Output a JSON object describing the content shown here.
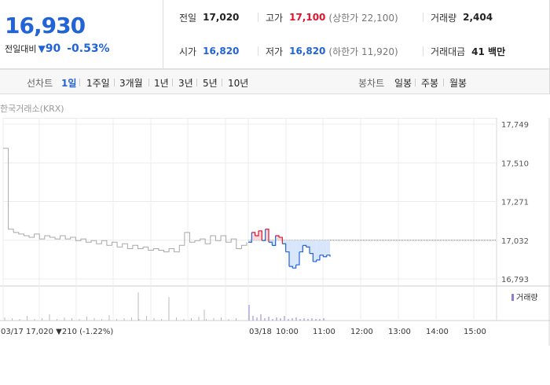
{
  "quote": {
    "price": "16,930",
    "change_label": "전일대비",
    "change_arrow": "▼",
    "change_value": "90",
    "change_pct": "-0.53%",
    "prev_close_label": "전일",
    "prev_close": "17,020",
    "high_label": "고가",
    "high": "17,100",
    "upper_limit": "(상한가 22,100)",
    "volume_label": "거래량",
    "volume": "2,404",
    "open_label": "시가",
    "open": "16,820",
    "low_label": "저가",
    "low": "16,820",
    "lower_limit": "(하한가 11,920)",
    "amount_label": "거래대금",
    "amount": "41 백만"
  },
  "line_chart_label": "선차트",
  "periods": [
    "1일",
    "1주일",
    "3개월",
    "1년",
    "3년",
    "5년",
    "10년"
  ],
  "selected_period": "1일",
  "candle_chart_label": "봉차트",
  "candle_periods": [
    "일봉",
    "주봉",
    "월봉"
  ],
  "exchange": "한국거래소(KRX)",
  "colors": {
    "up": "#e0132c",
    "down": "#2263d6",
    "line": "#a8a8a8"
  },
  "chart_data": {
    "type": "line",
    "y_ticks": [
      "17,749",
      "17,510",
      "17,271",
      "17,032",
      "16,793"
    ],
    "ylim": [
      16793,
      17749
    ],
    "reference_line": 17032,
    "x_ticks": [
      "03/17",
      "03/18",
      "10:00",
      "11:00",
      "12:00",
      "13:00",
      "14:00",
      "15:00"
    ],
    "prev_day_series": [
      17600,
      17100,
      17080,
      17070,
      17060,
      17050,
      17070,
      17040,
      17060,
      17050,
      17040,
      17060,
      17040,
      17050,
      17030,
      17040,
      17020,
      17030,
      17010,
      17030,
      17000,
      17020,
      16990,
      17010,
      16980,
      17000,
      16980,
      16990,
      16970,
      16980,
      16970,
      16960,
      16980,
      16960,
      17000,
      17080,
      17020,
      17030,
      17040,
      17010,
      17060,
      17030,
      17060,
      17020,
      17040,
      16980,
      17000,
      17020
    ],
    "today_series": [
      17020,
      17080,
      17060,
      17090,
      17030,
      17100,
      17020,
      17000,
      17060,
      17050,
      17010,
      16960,
      16870,
      16860,
      16880,
      16960,
      17000,
      16990,
      16950,
      16900,
      16910,
      16940,
      16930,
      16940,
      16930
    ],
    "volume_legend": "거래량",
    "footer_prev_close": "03/17 17,020 ▼210 (-1.22%)"
  }
}
